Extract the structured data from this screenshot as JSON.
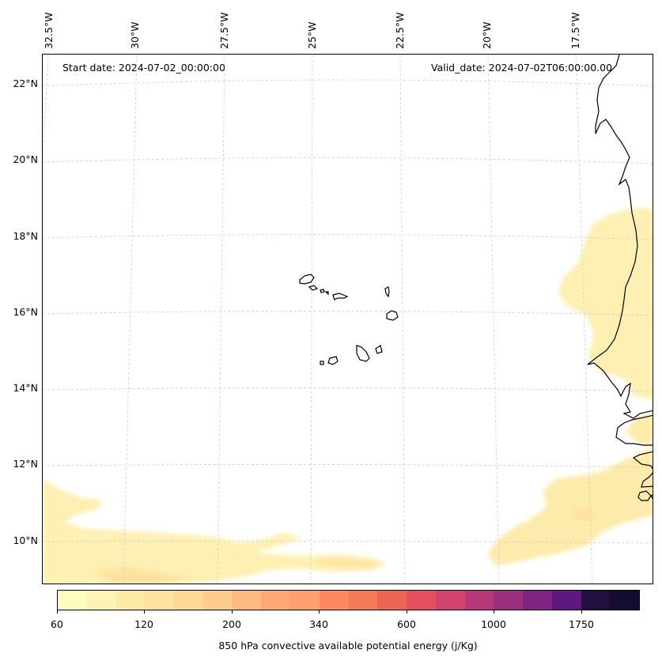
{
  "map": {
    "longitude_labels": [
      "32.5°W",
      "30°W",
      "27.5°W",
      "25°W",
      "22.5°W",
      "20°W",
      "17.5°W"
    ],
    "latitude_labels": [
      "22°N",
      "20°N",
      "18°N",
      "16°N",
      "14°N",
      "12°N",
      "10°N"
    ],
    "start_date": "Start date: 2024-07-02_00:00:00",
    "valid_date": "Valid_date: 2024-07-02T06:00:00.00",
    "coastline_color": "#000000",
    "gridline_color": "#cccccc",
    "islands": [
      "Santo Antão",
      "São Vicente",
      "São Nicolau",
      "Sal",
      "Boa Vista",
      "Maio",
      "Santiago",
      "Fogo",
      "Brava"
    ]
  },
  "colorbar": {
    "title": "850 hPa convective available potential energy (j/Kg)",
    "tick_labels": [
      "60",
      "120",
      "200",
      "340",
      "600",
      "1000",
      "1750"
    ],
    "colors": [
      "#fcfdbf",
      "#fcf4b6",
      "#fdeaa6",
      "#fde2a0",
      "#fed895",
      "#fecd8c",
      "#feba80",
      "#fea974",
      "#fe9f6d",
      "#fc8961",
      "#f67a58",
      "#ed6457",
      "#e44f5d",
      "#d3436e",
      "#b73779",
      "#9c2e7f",
      "#7e2482",
      "#5f187f",
      "#210f3e",
      "#120d31"
    ]
  }
}
